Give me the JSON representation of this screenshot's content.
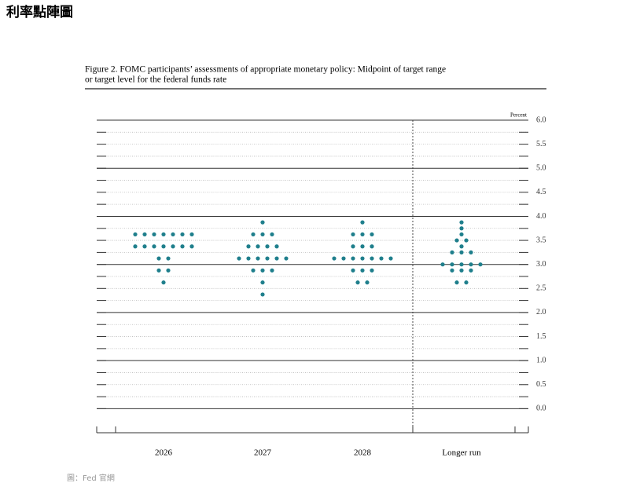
{
  "page_title": "利率點陣圖",
  "source": "圖：Fed 官網",
  "chart_data": {
    "type": "dot",
    "caption": [
      "Figure 2. FOMC participants’ assessments of appropriate monetary policy: Midpoint of target range",
      "or target level for the federal funds rate"
    ],
    "y_label": "Percent",
    "categories": [
      "2026",
      "2027",
      "2028",
      "Longer run"
    ],
    "color": "#1f7f8c",
    "dots": [
      [
        {
          "value": 3.625,
          "count": 7
        },
        {
          "value": 3.375,
          "count": 7
        },
        {
          "value": 3.125,
          "count": 2
        },
        {
          "value": 2.875,
          "count": 2
        },
        {
          "value": 2.625,
          "count": 1
        }
      ],
      [
        {
          "value": 3.875,
          "count": 1
        },
        {
          "value": 3.625,
          "count": 3
        },
        {
          "value": 3.375,
          "count": 4
        },
        {
          "value": 3.125,
          "count": 6
        },
        {
          "value": 2.875,
          "count": 3
        },
        {
          "value": 2.625,
          "count": 1
        },
        {
          "value": 2.375,
          "count": 1
        }
      ],
      [
        {
          "value": 3.875,
          "count": 1
        },
        {
          "value": 3.625,
          "count": 3
        },
        {
          "value": 3.375,
          "count": 3
        },
        {
          "value": 3.125,
          "count": 7
        },
        {
          "value": 2.875,
          "count": 3
        },
        {
          "value": 2.625,
          "count": 2
        }
      ],
      [
        {
          "value": 3.875,
          "count": 1
        },
        {
          "value": 3.75,
          "count": 1
        },
        {
          "value": 3.625,
          "count": 1
        },
        {
          "value": 3.5,
          "count": 2
        },
        {
          "value": 3.375,
          "count": 1
        },
        {
          "value": 3.25,
          "count": 3
        },
        {
          "value": 3.0,
          "count": 5
        },
        {
          "value": 2.875,
          "count": 3
        },
        {
          "value": 2.625,
          "count": 2
        }
      ]
    ],
    "ylim": [
      -0.5,
      6
    ],
    "yticks": [
      {
        "value": 6,
        "label": "6.0"
      },
      {
        "value": 5.5,
        "label": "5.5"
      },
      {
        "value": 5,
        "label": "5.0"
      },
      {
        "value": 4.5,
        "label": "4.5"
      },
      {
        "value": 4,
        "label": "4.0"
      },
      {
        "value": 3.5,
        "label": "3.5"
      },
      {
        "value": 3,
        "label": "3.0"
      },
      {
        "value": 2.5,
        "label": "2.5"
      },
      {
        "value": 2,
        "label": "2.0"
      },
      {
        "value": 1.5,
        "label": "1.5"
      },
      {
        "value": 1,
        "label": "1.0"
      },
      {
        "value": 0.5,
        "label": "0.5"
      },
      {
        "value": 0,
        "label": "0.0"
      }
    ],
    "minor_yticks": [
      5.75,
      5.25,
      4.75,
      4.25,
      3.75,
      3.25,
      2.75,
      2.25,
      1.75,
      1.25,
      0.75,
      0.25
    ],
    "grid": true
  }
}
